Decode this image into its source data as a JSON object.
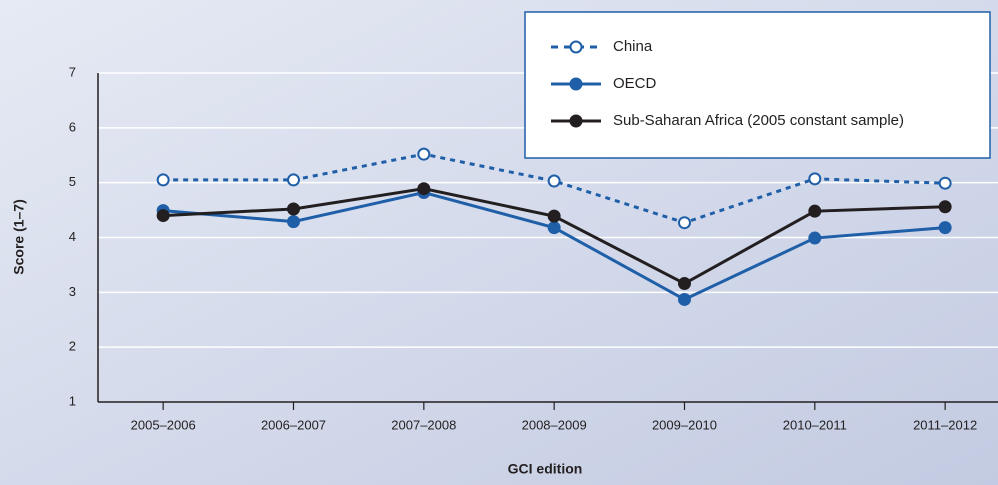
{
  "chart_data": {
    "type": "line",
    "xlabel": "GCI edition",
    "ylabel": "Score (1–7)",
    "categories": [
      "2005–2006",
      "2006–2007",
      "2007–2008",
      "2008–2009",
      "2009–2010",
      "2010–2011",
      "2011–2012"
    ],
    "series": [
      {
        "name": "China",
        "color": "#1f5fa8",
        "dashed": true,
        "marker": "open",
        "values": [
          5.05,
          5.05,
          5.52,
          5.03,
          4.27,
          5.07,
          4.99
        ]
      },
      {
        "name": "OECD",
        "color": "#1f5fa8",
        "dashed": false,
        "marker": "filled",
        "values": [
          4.49,
          4.29,
          4.82,
          4.18,
          2.87,
          3.99,
          4.18
        ]
      },
      {
        "name": "Sub-Saharan Africa (2005 constant sample)",
        "color": "#231f20",
        "dashed": false,
        "marker": "filled",
        "values": [
          4.4,
          4.52,
          4.89,
          4.39,
          3.16,
          4.48,
          4.56
        ]
      }
    ],
    "ylim": [
      1,
      7
    ],
    "yticks": [
      1,
      2,
      3,
      4,
      5,
      6,
      7
    ],
    "grid": true,
    "legend": "top-right"
  }
}
